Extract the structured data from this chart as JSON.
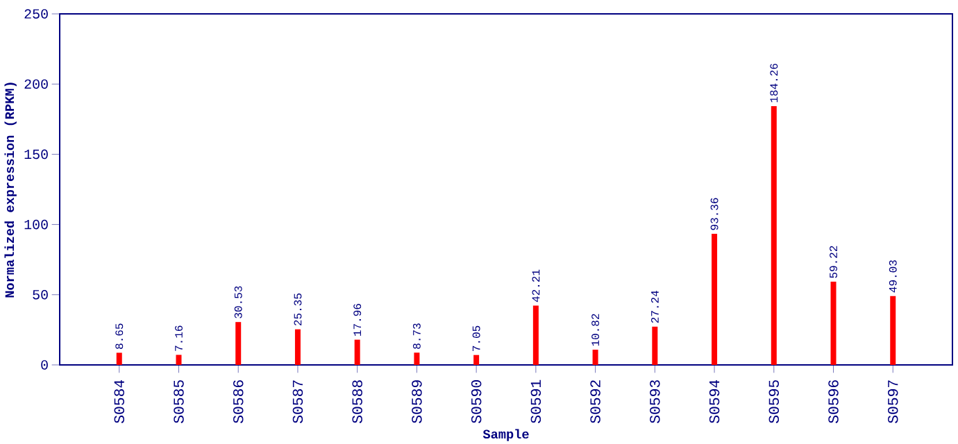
{
  "chart_data": {
    "type": "bar",
    "xlabel": "Sample",
    "ylabel": "Normalized expression (RPKM)",
    "categories": [
      "S0584",
      "S0585",
      "S0586",
      "S0587",
      "S0588",
      "S0589",
      "S0590",
      "S0591",
      "S0592",
      "S0593",
      "S0594",
      "S0595",
      "S0596",
      "S0597"
    ],
    "values": [
      8.65,
      7.16,
      30.53,
      25.35,
      17.96,
      8.73,
      7.05,
      42.21,
      10.82,
      27.24,
      93.36,
      184.26,
      59.22,
      49.03
    ],
    "color": "#ff0000",
    "ylim": [
      0,
      250
    ],
    "yticks": [
      0,
      50,
      100,
      150,
      200,
      250
    ],
    "data_labels": true
  }
}
